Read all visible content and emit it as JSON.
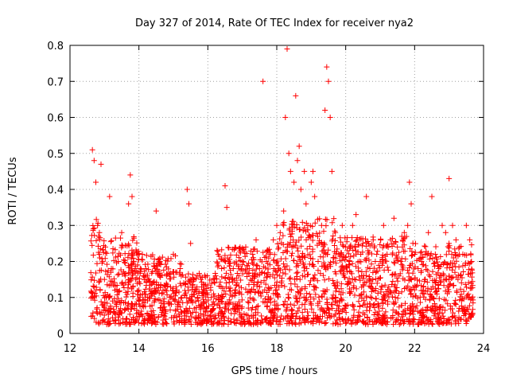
{
  "chart_data": {
    "type": "scatter",
    "title": "Day 327 of 2014, Rate Of TEC Index for receiver nya2",
    "xlabel": "GPS time / hours",
    "ylabel": "ROTI / TECUs",
    "xlim": [
      12,
      24
    ],
    "ylim": [
      0,
      0.8
    ],
    "x_ticks": [
      "12",
      "14",
      "16",
      "18",
      "20",
      "22",
      "24"
    ],
    "y_ticks": [
      "0",
      "0.1",
      "0.2",
      "0.3",
      "0.4",
      "0.5",
      "0.6",
      "0.7",
      "0.8"
    ],
    "grid": true,
    "marker": "+",
    "color": "#ff0000",
    "series": [
      {
        "name": "ROTI",
        "x": [
          12.65,
          12.7,
          12.75,
          12.8,
          12.85,
          12.9,
          12.95,
          13.0,
          13.05,
          13.1,
          13.15,
          13.2,
          13.3,
          13.4,
          13.5,
          13.6,
          13.7,
          13.75,
          13.8,
          13.85,
          13.9,
          14.0,
          14.1,
          14.2,
          14.3,
          14.4,
          14.5,
          14.6,
          14.7,
          14.8,
          14.9,
          15.0,
          15.1,
          15.2,
          15.3,
          15.4,
          15.45,
          15.5,
          15.6,
          15.7,
          15.8,
          15.9,
          16.0,
          16.1,
          16.2,
          16.3,
          16.4,
          16.5,
          16.55,
          16.6,
          16.7,
          16.8,
          16.9,
          17.0,
          17.1,
          17.2,
          17.3,
          17.4,
          17.5,
          17.6,
          17.7,
          17.8,
          17.9,
          18.0,
          18.1,
          18.2,
          18.25,
          18.3,
          18.35,
          18.4,
          18.5,
          18.55,
          18.6,
          18.65,
          18.7,
          18.8,
          18.85,
          18.9,
          19.0,
          19.05,
          19.1,
          19.2,
          19.3,
          19.4,
          19.45,
          19.5,
          19.55,
          19.6,
          19.7,
          19.8,
          19.9,
          20.0,
          20.1,
          20.2,
          20.3,
          20.4,
          20.5,
          20.6,
          20.7,
          20.8,
          20.9,
          21.0,
          21.1,
          21.2,
          21.3,
          21.4,
          21.5,
          21.6,
          21.7,
          21.8,
          21.85,
          21.9,
          22.0,
          22.1,
          22.2,
          22.3,
          22.4,
          22.5,
          22.6,
          22.7,
          22.8,
          22.9,
          23.0,
          23.1,
          23.2,
          23.3,
          23.4,
          23.5,
          23.6,
          23.65
        ],
        "y": [
          0.51,
          0.48,
          0.42,
          0.3,
          0.22,
          0.47,
          0.2,
          0.15,
          0.1,
          0.06,
          0.38,
          0.18,
          0.12,
          0.2,
          0.28,
          0.16,
          0.36,
          0.44,
          0.38,
          0.2,
          0.15,
          0.12,
          0.22,
          0.18,
          0.1,
          0.14,
          0.34,
          0.2,
          0.12,
          0.16,
          0.1,
          0.22,
          0.12,
          0.18,
          0.14,
          0.4,
          0.36,
          0.25,
          0.15,
          0.1,
          0.08,
          0.12,
          0.05,
          0.1,
          0.14,
          0.22,
          0.18,
          0.41,
          0.35,
          0.2,
          0.15,
          0.12,
          0.16,
          0.2,
          0.24,
          0.18,
          0.22,
          0.26,
          0.18,
          0.7,
          0.2,
          0.22,
          0.26,
          0.3,
          0.28,
          0.34,
          0.6,
          0.79,
          0.5,
          0.45,
          0.42,
          0.66,
          0.48,
          0.52,
          0.4,
          0.45,
          0.36,
          0.3,
          0.42,
          0.45,
          0.38,
          0.2,
          0.3,
          0.62,
          0.74,
          0.7,
          0.6,
          0.45,
          0.28,
          0.22,
          0.3,
          0.24,
          0.2,
          0.3,
          0.33,
          0.2,
          0.25,
          0.38,
          0.18,
          0.26,
          0.22,
          0.2,
          0.3,
          0.22,
          0.26,
          0.32,
          0.24,
          0.2,
          0.28,
          0.3,
          0.42,
          0.36,
          0.22,
          0.18,
          0.2,
          0.22,
          0.28,
          0.38,
          0.22,
          0.18,
          0.3,
          0.28,
          0.43,
          0.3,
          0.26,
          0.24,
          0.22,
          0.3,
          0.26,
          0.2
        ],
        "extent": "dense cloud: x 12.6–23.7 h, y 0.02–0.79, bulk between 0.03 and 0.25"
      }
    ]
  }
}
